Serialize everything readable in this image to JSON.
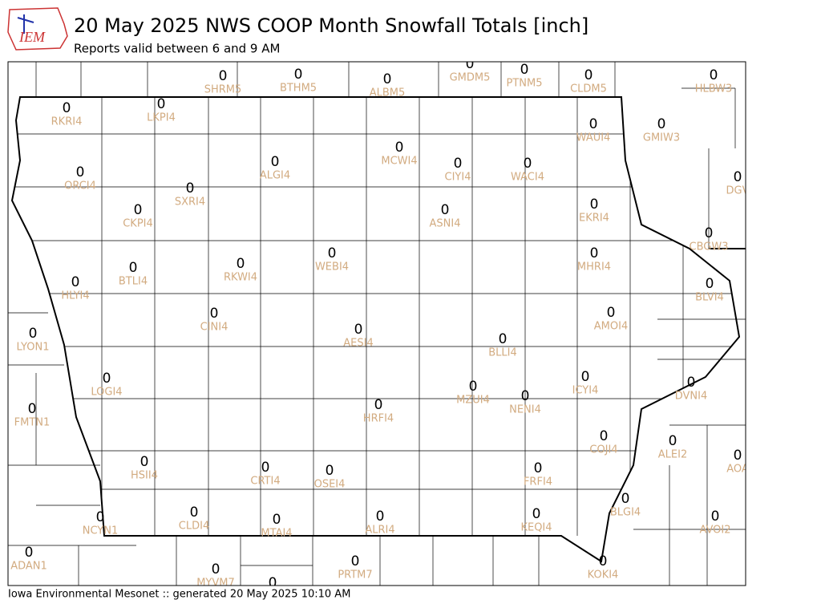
{
  "header": {
    "logo_text": "IEM",
    "title": "20 May 2025 NWS COOP Month Snowfall Totals [inch]",
    "subtitle": "Reports valid between 6 and 9 AM"
  },
  "footer": "Iowa Environmental Mesonet :: generated 20 May 2025 10:10 AM",
  "stations": [
    {
      "id": "SHRM5",
      "value": 0
    },
    {
      "id": "BTHM5",
      "value": 0
    },
    {
      "id": "ALBM5",
      "value": 0
    },
    {
      "id": "GMDM5",
      "value": 0
    },
    {
      "id": "PTNM5",
      "value": 0
    },
    {
      "id": "CLDM5",
      "value": 0
    },
    {
      "id": "HLBW3",
      "value": 0
    },
    {
      "id": "RKRI4",
      "value": 0
    },
    {
      "id": "LKPI4",
      "value": 0
    },
    {
      "id": "WAUI4",
      "value": 0
    },
    {
      "id": "GMIW3",
      "value": 0
    },
    {
      "id": "MCWI4",
      "value": 0
    },
    {
      "id": "ALGI4",
      "value": 0
    },
    {
      "id": "CIYI4",
      "value": 0
    },
    {
      "id": "WACI4",
      "value": 0
    },
    {
      "id": "ORCI4",
      "value": 0
    },
    {
      "id": "DGV",
      "value": 0
    },
    {
      "id": "SXRI4",
      "value": 0
    },
    {
      "id": "EKRI4",
      "value": 0
    },
    {
      "id": "ASNI4",
      "value": 0
    },
    {
      "id": "CKPI4",
      "value": 0
    },
    {
      "id": "CBGW3",
      "value": 0
    },
    {
      "id": "WEBI4",
      "value": 0
    },
    {
      "id": "MHRI4",
      "value": 0
    },
    {
      "id": "RKWI4",
      "value": 0
    },
    {
      "id": "BTLI4",
      "value": 0
    },
    {
      "id": "HLYI4",
      "value": 0
    },
    {
      "id": "BLVI4",
      "value": 0
    },
    {
      "id": "AMOI4",
      "value": 0
    },
    {
      "id": "CINI4",
      "value": 0
    },
    {
      "id": "AESI4",
      "value": 0
    },
    {
      "id": "LYON1",
      "value": 0
    },
    {
      "id": "BLLI4",
      "value": 0
    },
    {
      "id": "ICYI4",
      "value": 0
    },
    {
      "id": "LOGI4",
      "value": 0
    },
    {
      "id": "DVNI4",
      "value": 0
    },
    {
      "id": "MZUI4",
      "value": 0
    },
    {
      "id": "NENI4",
      "value": 0
    },
    {
      "id": "HRFI4",
      "value": 0
    },
    {
      "id": "FMTN1",
      "value": 0
    },
    {
      "id": "ALEI2",
      "value": 0
    },
    {
      "id": "COJI4",
      "value": 0
    },
    {
      "id": "AOA",
      "value": 0
    },
    {
      "id": "HSII4",
      "value": 0
    },
    {
      "id": "CRTI4",
      "value": 0
    },
    {
      "id": "FRFI4",
      "value": 0
    },
    {
      "id": "OSEI4",
      "value": 0
    },
    {
      "id": "BLGI4",
      "value": 0
    },
    {
      "id": "KEQI4",
      "value": 0
    },
    {
      "id": "CLDI4",
      "value": 0
    },
    {
      "id": "ALRI4",
      "value": 0
    },
    {
      "id": "NCYN1",
      "value": 0
    },
    {
      "id": "AVOI2",
      "value": 0
    },
    {
      "id": "MTAI4",
      "value": 0
    },
    {
      "id": "ADAN1",
      "value": 0
    },
    {
      "id": "PRTM7",
      "value": 0
    },
    {
      "id": "KOKI4",
      "value": 0
    },
    {
      "id": "MYVM7",
      "value": 0
    },
    {
      "value": 0
    }
  ]
}
